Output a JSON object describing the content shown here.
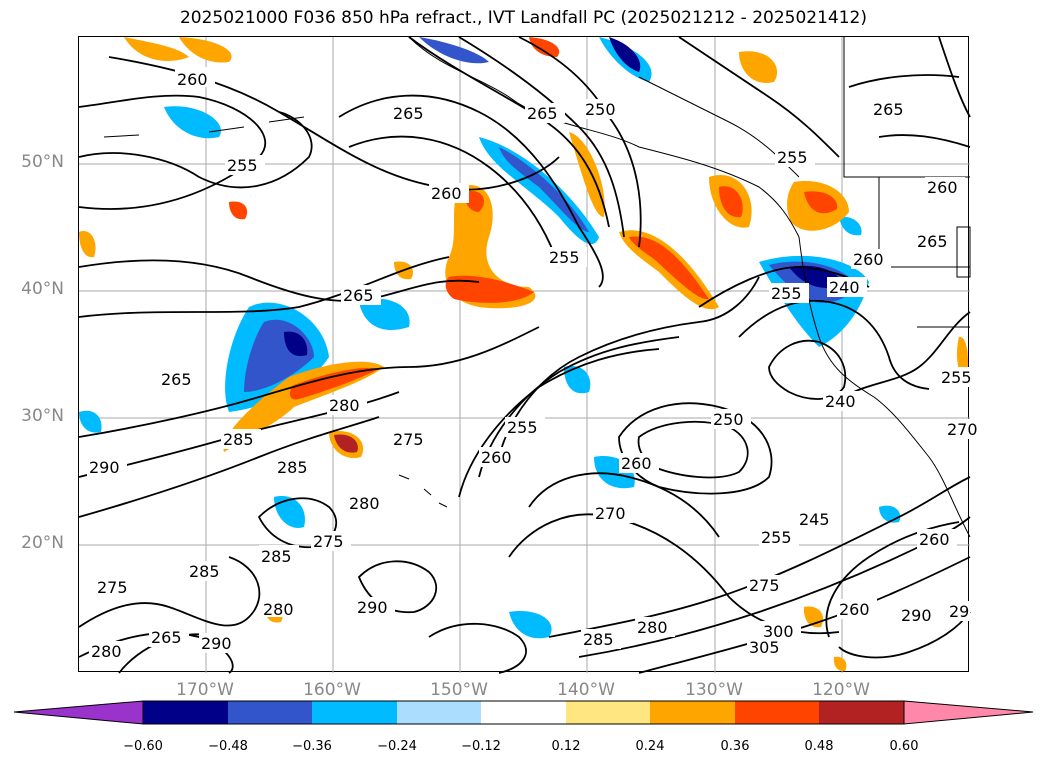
{
  "title": "2025021000 F036 850 hPa refract., IVT Landfall PC (2025021212 - 2025021412)",
  "map": {
    "lat_labels": [
      "50°N",
      "40°N",
      "30°N",
      "20°N"
    ],
    "lon_labels": [
      "170°W",
      "160°W",
      "150°W",
      "140°W",
      "130°W",
      "120°W"
    ],
    "contour_labels": [
      "260",
      "255",
      "265",
      "265",
      "250",
      "255",
      "260",
      "255",
      "265",
      "255",
      "265",
      "265",
      "260",
      "280",
      "285",
      "275",
      "255",
      "260",
      "290",
      "285",
      "280",
      "275",
      "285",
      "285",
      "280",
      "290",
      "265",
      "275",
      "290",
      "280",
      "270",
      "260",
      "250",
      "260",
      "255",
      "245",
      "240",
      "255",
      "240",
      "285",
      "280",
      "275",
      "300",
      "305",
      "260",
      "290",
      "29",
      "265",
      "260",
      "270"
    ]
  },
  "colorbar": {
    "ticks": [
      "−0.60",
      "−0.48",
      "−0.36",
      "−0.24",
      "−0.12",
      "0.12",
      "0.24",
      "0.36",
      "0.48",
      "0.60"
    ],
    "colors": [
      "#9933cc",
      "#000088",
      "#3355cc",
      "#00bbff",
      "#aaddff",
      "#ffffff",
      "#ffe680",
      "#ffa500",
      "#ff4400",
      "#b22222",
      "#ff88aa"
    ]
  },
  "colors": {
    "neg_strong": "#000088",
    "neg_mid": "#3355cc",
    "neg_cyan": "#00bbff",
    "neg_light": "#aaddff",
    "pos_light": "#ffe680",
    "pos_orange": "#ffa500",
    "pos_red": "#ff4400",
    "pos_dark": "#b22222"
  }
}
